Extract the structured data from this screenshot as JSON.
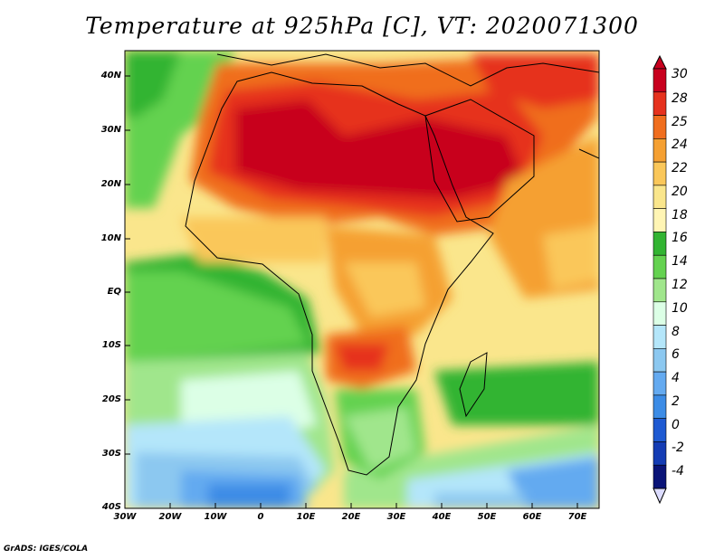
{
  "title": "Temperature at 925hPa [C], VT: 2020071300",
  "credit": "GrADS: IGES/COLA",
  "map": {
    "lat_labels": [
      "40N",
      "30N",
      "20N",
      "10N",
      "EQ",
      "10S",
      "20S",
      "30S",
      "40S"
    ],
    "lon_labels": [
      "30W",
      "20W",
      "10W",
      "0",
      "10E",
      "20E",
      "30E",
      "40E",
      "50E",
      "60E",
      "70E"
    ]
  },
  "colorbar": {
    "labels": [
      "30",
      "28",
      "25",
      "24",
      "22",
      "20",
      "18",
      "16",
      "14",
      "12",
      "10",
      "8",
      "6",
      "4",
      "2",
      "0",
      "-2",
      "-4"
    ],
    "colors": [
      "#c8001e",
      "#e6321e",
      "#f06e1e",
      "#f5a032",
      "#fac75a",
      "#fae68c",
      "#fff5b4",
      "#32b432",
      "#64d250",
      "#a0e68c",
      "#dcffe6",
      "#b4e6fa",
      "#8cc8f0",
      "#64aaf0",
      "#3c8ce6",
      "#1e5ad2",
      "#143cb4",
      "#0a1478"
    ]
  },
  "colors": {
    "ocean_cold": "#3c8ce6",
    "ocean_cool": "#a0e68c",
    "land_hot": "#c8001e",
    "border": "#000000"
  }
}
